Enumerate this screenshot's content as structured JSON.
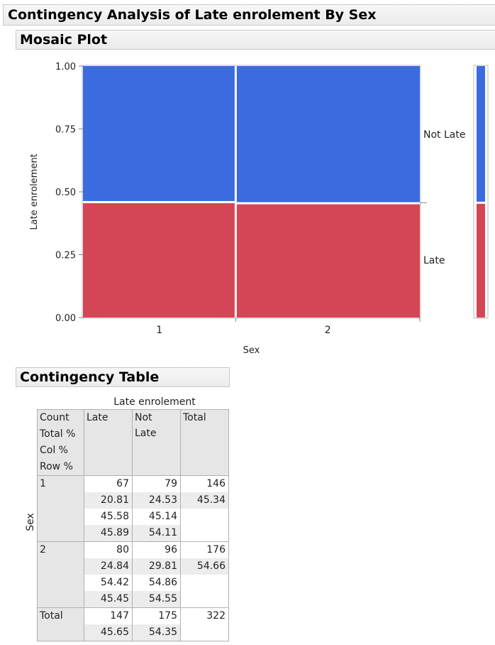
{
  "report": {
    "title": "Contingency Analysis of Late enrolement By Sex",
    "mosaic_title": "Mosaic Plot",
    "table_title": "Contingency Table"
  },
  "chart_data": {
    "type": "mosaic",
    "xlabel": "Sex",
    "ylabel": "Late enrolement",
    "ylim": [
      0,
      1
    ],
    "y_ticks": [
      "0.00",
      "0.25",
      "0.50",
      "0.75",
      "1.00"
    ],
    "categories": [
      "1",
      "2"
    ],
    "column_widths": [
      146,
      176
    ],
    "series": [
      {
        "name": "Late",
        "color": "#d44556",
        "values": [
          0.4589,
          0.4545
        ]
      },
      {
        "name": "Not Late",
        "color": "#3b6bde",
        "values": [
          0.5411,
          0.5455
        ]
      }
    ],
    "marginal": [
      0.4565,
      0.5435
    ],
    "legend_labels": [
      "Not Late",
      "Late"
    ]
  },
  "contingency_table": {
    "col_header": "Late enrolement",
    "row_header": "Sex",
    "stat_labels": [
      "Count",
      "Total %",
      "Col %",
      "Row %"
    ],
    "columns": [
      "Late",
      "Not Late",
      "Total"
    ],
    "columns_display": [
      [
        "Late"
      ],
      [
        "Not",
        "Late"
      ],
      [
        "Total"
      ]
    ],
    "rows": [
      {
        "label": "1",
        "cells": [
          [
            "67",
            "20.81",
            "45.58",
            "45.89"
          ],
          [
            "79",
            "24.53",
            "45.14",
            "54.11"
          ]
        ],
        "total": [
          "146",
          "45.34"
        ]
      },
      {
        "label": "2",
        "cells": [
          [
            "80",
            "24.84",
            "54.42",
            "45.45"
          ],
          [
            "96",
            "29.81",
            "54.86",
            "54.55"
          ]
        ],
        "total": [
          "176",
          "54.66"
        ]
      }
    ],
    "total_row": {
      "label": "Total",
      "cells": [
        [
          "147",
          "45.65"
        ],
        [
          "175",
          "54.35"
        ]
      ],
      "grand_total": "322"
    }
  }
}
